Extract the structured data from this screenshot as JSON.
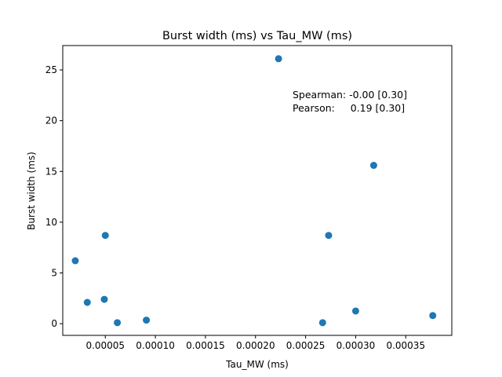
{
  "chart_data": {
    "type": "scatter",
    "title": "Burst width (ms) vs Tau_MW (ms)",
    "xlabel": "Tau_MW (ms)",
    "ylabel": "Burst width (ms)",
    "xlim": [
      7.5e-06,
      0.000396
    ],
    "ylim": [
      -1.15,
      27.4
    ],
    "x_ticks": [
      5e-05,
      0.0001,
      0.00015,
      0.0002,
      0.00025,
      0.0003,
      0.00035
    ],
    "x_tick_labels": [
      "0.00005",
      "0.00010",
      "0.00015",
      "0.00020",
      "0.00025",
      "0.00030",
      "0.00035"
    ],
    "y_ticks": [
      0,
      5,
      10,
      15,
      20,
      25
    ],
    "y_tick_labels": [
      "0",
      "5",
      "10",
      "15",
      "20",
      "25"
    ],
    "grid": false,
    "marker_color": "#1f77b4",
    "points": [
      {
        "x": 2e-05,
        "y": 6.2
      },
      {
        "x": 3.2e-05,
        "y": 2.1
      },
      {
        "x": 4.9e-05,
        "y": 2.4
      },
      {
        "x": 5e-05,
        "y": 8.7
      },
      {
        "x": 6.2e-05,
        "y": 0.1
      },
      {
        "x": 9.1e-05,
        "y": 0.35
      },
      {
        "x": 0.000223,
        "y": 26.1
      },
      {
        "x": 0.000267,
        "y": 0.1
      },
      {
        "x": 0.000273,
        "y": 8.7
      },
      {
        "x": 0.0003,
        "y": 1.25
      },
      {
        "x": 0.000318,
        "y": 15.6
      },
      {
        "x": 0.000377,
        "y": 0.8
      }
    ],
    "annotations": [
      "Spearman: -0.00 [0.30]",
      "Pearson:     0.19 [0.30]"
    ]
  }
}
